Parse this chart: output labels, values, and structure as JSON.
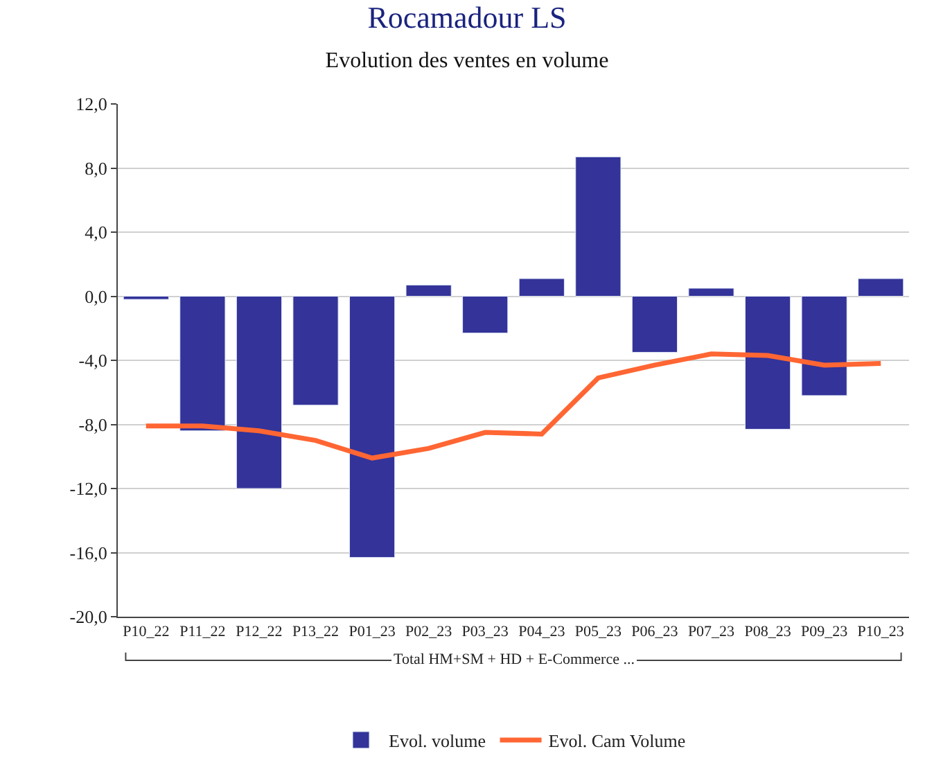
{
  "chart_data": {
    "type": "bar",
    "title": "Rocamadour LS",
    "subtitle": "Evolution des ventes en volume",
    "categories": [
      "P10_22",
      "P11_22",
      "P12_22",
      "P13_22",
      "P01_23",
      "P02_23",
      "P03_23",
      "P04_23",
      "P05_23",
      "P06_23",
      "P07_23",
      "P08_23",
      "P09_23",
      "P10_23"
    ],
    "series": [
      {
        "name": "Evol. volume",
        "color": "#333399",
        "values": [
          -0.2,
          -8.4,
          -12.0,
          -6.8,
          -16.3,
          0.7,
          -2.3,
          1.1,
          8.7,
          -3.5,
          0.5,
          -8.3,
          -6.2,
          1.1
        ]
      },
      {
        "name": "Evol. Cam Volume",
        "type": "line",
        "color": "#ff6633",
        "values": [
          -8.1,
          -8.1,
          -8.4,
          -9.0,
          -10.1,
          -9.5,
          -8.5,
          -8.6,
          -5.1,
          -4.3,
          -3.6,
          -3.7,
          -4.3,
          -4.2
        ]
      }
    ],
    "annotations": [
      "Total HM+SM + HD + E-Commerce ..."
    ],
    "ylim": [
      -20,
      12
    ],
    "yticks": [
      {
        "value": -20,
        "label": "-20,0"
      },
      {
        "value": -16,
        "label": "-16,0"
      },
      {
        "value": -12,
        "label": "-12,0"
      },
      {
        "value": -8,
        "label": "-8,0"
      },
      {
        "value": -4,
        "label": "-4,0"
      },
      {
        "value": 0,
        "label": "0,0"
      },
      {
        "value": 4,
        "label": "4,0"
      },
      {
        "value": 8,
        "label": "8,0"
      },
      {
        "value": 12,
        "label": "12,0"
      }
    ],
    "grid": "y",
    "legend": "bottom",
    "marker": "none",
    "line_style": "solid"
  }
}
